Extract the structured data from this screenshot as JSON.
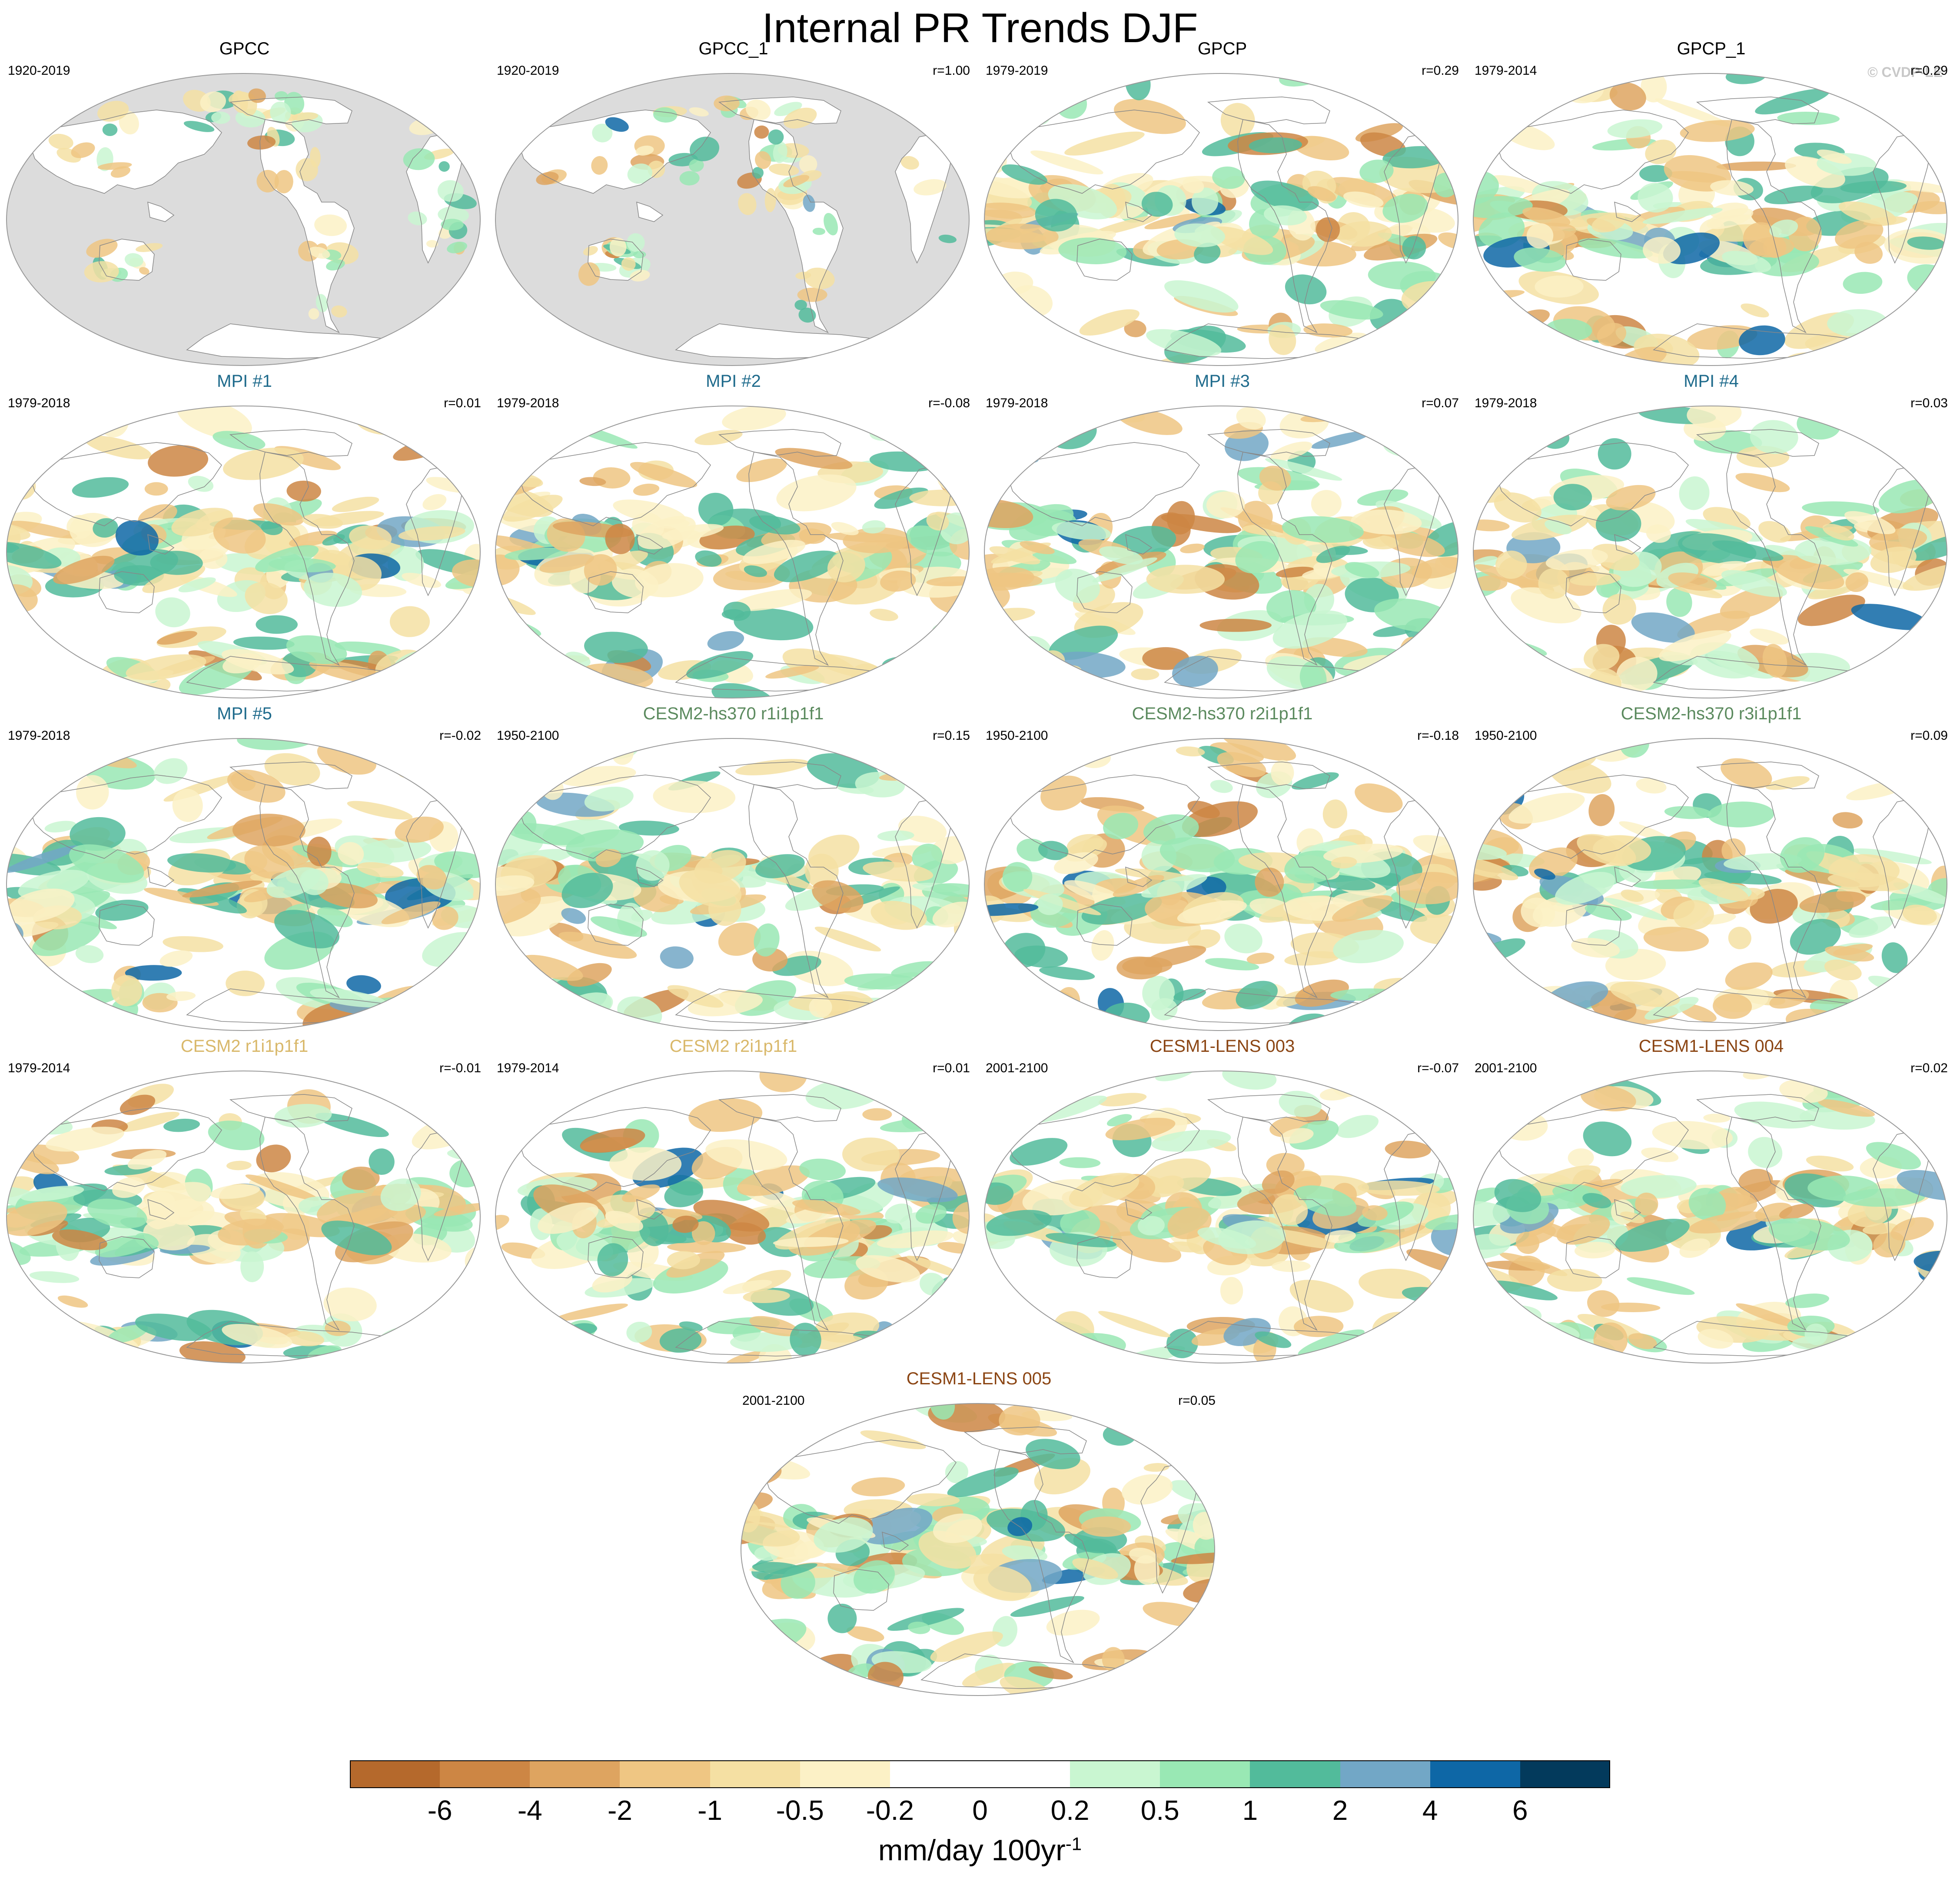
{
  "title": "Internal PR Trends DJF",
  "copyright": "© CVDP-LE",
  "colors": {
    "obs": "#000000",
    "mpi": "#1f6b8c",
    "cesm2_hs370": "#5b8a5e",
    "cesm2": "#d9b86a",
    "cesm1_lens": "#8b4513",
    "land_mask": "#dcdcdc",
    "ocean": "#ffffff",
    "coast": "#888888"
  },
  "panels": [
    {
      "title": "GPCC",
      "group": "obs",
      "period": "1920-2019",
      "r": "",
      "masked_ocean": true
    },
    {
      "title": "GPCC_1",
      "group": "obs",
      "period": "1920-2019",
      "r": "r=1.00",
      "masked_ocean": true
    },
    {
      "title": "GPCP",
      "group": "obs",
      "period": "1979-2019",
      "r": "r=0.29",
      "masked_ocean": false
    },
    {
      "title": "GPCP_1",
      "group": "obs",
      "period": "1979-2014",
      "r": "r=0.29",
      "masked_ocean": false
    },
    {
      "title": "MPI #1",
      "group": "mpi",
      "period": "1979-2018",
      "r": "r=0.01",
      "masked_ocean": false
    },
    {
      "title": "MPI #2",
      "group": "mpi",
      "period": "1979-2018",
      "r": "r=-0.08",
      "masked_ocean": false
    },
    {
      "title": "MPI #3",
      "group": "mpi",
      "period": "1979-2018",
      "r": "r=0.07",
      "masked_ocean": false
    },
    {
      "title": "MPI #4",
      "group": "mpi",
      "period": "1979-2018",
      "r": "r=0.03",
      "masked_ocean": false
    },
    {
      "title": "MPI #5",
      "group": "mpi",
      "period": "1979-2018",
      "r": "r=-0.02",
      "masked_ocean": false
    },
    {
      "title": "CESM2-hs370 r1i1p1f1",
      "group": "cesm2_hs370",
      "period": "1950-2100",
      "r": "r=0.15",
      "masked_ocean": false
    },
    {
      "title": "CESM2-hs370 r2i1p1f1",
      "group": "cesm2_hs370",
      "period": "1950-2100",
      "r": "r=-0.18",
      "masked_ocean": false
    },
    {
      "title": "CESM2-hs370 r3i1p1f1",
      "group": "cesm2_hs370",
      "period": "1950-2100",
      "r": "r=0.09",
      "masked_ocean": false
    },
    {
      "title": "CESM2 r1i1p1f1",
      "group": "cesm2",
      "period": "1979-2014",
      "r": "r=-0.01",
      "masked_ocean": false
    },
    {
      "title": "CESM2 r2i1p1f1",
      "group": "cesm2",
      "period": "1979-2014",
      "r": "r=0.01",
      "masked_ocean": false
    },
    {
      "title": "CESM1-LENS 003",
      "group": "cesm1_lens",
      "period": "2001-2100",
      "r": "r=-0.07",
      "masked_ocean": false
    },
    {
      "title": "CESM1-LENS 004",
      "group": "cesm1_lens",
      "period": "2001-2100",
      "r": "r=0.02",
      "masked_ocean": false
    },
    {
      "title": "CESM1-LENS 005",
      "group": "cesm1_lens",
      "period": "2001-2100",
      "r": "r=0.05",
      "masked_ocean": false
    }
  ],
  "colorbar": {
    "colors": [
      "#b5692c",
      "#cd8644",
      "#dea460",
      "#efc683",
      "#f5e0a3",
      "#fcf1c6",
      "#ffffff",
      "#ffffff",
      "#c9f6d1",
      "#99e8b4",
      "#52bb9b",
      "#72a7c6",
      "#0e67a6",
      "#033a5c"
    ],
    "labels": [
      "-6",
      "-4",
      "-2",
      "-1",
      "-0.5",
      "-0.2",
      "0",
      "0.2",
      "0.5",
      "1",
      "2",
      "4",
      "6"
    ],
    "units": "mm/day 100yr",
    "units_exponent": "-1"
  }
}
